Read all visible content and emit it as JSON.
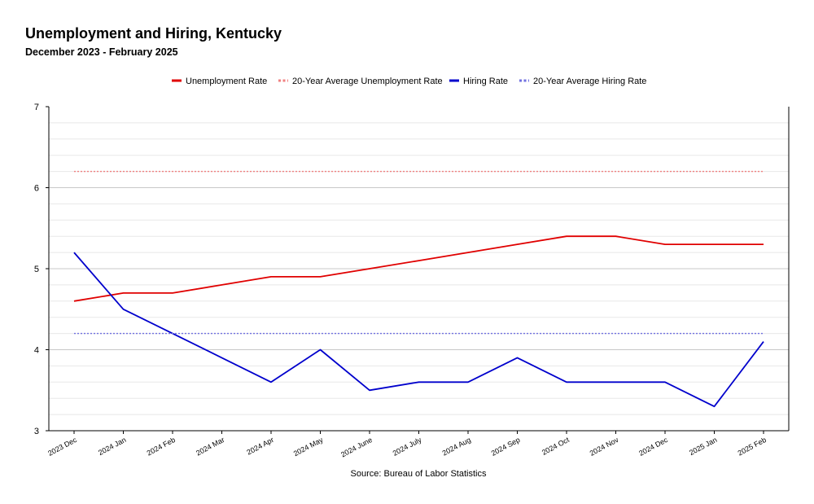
{
  "chart_data": {
    "type": "line",
    "title": "Unemployment and Hiring, Kentucky",
    "subtitle": "December 2023 - February 2025",
    "source": "Source: Bureau of Labor Statistics",
    "categories": [
      "2023 Dec",
      "2024 Jan",
      "2024 Feb",
      "2024 Mar",
      "2024 Apr",
      "2024 May",
      "2024 June",
      "2024 July",
      "2024 Aug",
      "2024 Sep",
      "2024 Oct",
      "2024 Nov",
      "2024 Dec",
      "2025 Jan",
      "2025 Feb"
    ],
    "ylim": [
      3,
      7
    ],
    "yticks": [
      "3",
      "4",
      "5",
      "6",
      "7"
    ],
    "grid": true,
    "legend_position": "top-center",
    "series": [
      {
        "name": "Unemployment Rate",
        "color": "#e00000",
        "style": "solid",
        "values": [
          4.6,
          4.7,
          4.7,
          4.8,
          4.9,
          4.9,
          5.0,
          5.1,
          5.2,
          5.3,
          5.4,
          5.4,
          5.3,
          5.3,
          5.3
        ]
      },
      {
        "name": "20-Year Average Unemployment Rate",
        "color": "#f08080",
        "style": "dotted",
        "values": [
          6.2,
          6.2,
          6.2,
          6.2,
          6.2,
          6.2,
          6.2,
          6.2,
          6.2,
          6.2,
          6.2,
          6.2,
          6.2,
          6.2,
          6.2
        ]
      },
      {
        "name": "Hiring Rate",
        "color": "#0000cc",
        "style": "solid",
        "values": [
          5.2,
          4.5,
          4.2,
          3.9,
          3.6,
          4.0,
          3.5,
          3.6,
          3.6,
          3.9,
          3.6,
          3.6,
          3.6,
          3.3,
          4.1
        ]
      },
      {
        "name": "20-Year Average Hiring Rate",
        "color": "#7070e0",
        "style": "dotted",
        "values": [
          4.2,
          4.2,
          4.2,
          4.2,
          4.2,
          4.2,
          4.2,
          4.2,
          4.2,
          4.2,
          4.2,
          4.2,
          4.2,
          4.2,
          4.2
        ]
      }
    ]
  }
}
